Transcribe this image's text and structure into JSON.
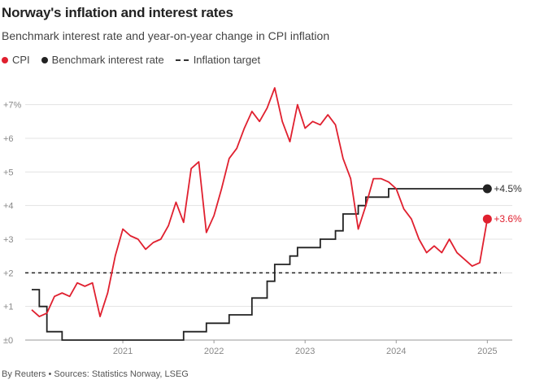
{
  "title": "Norway's inflation and interest rates",
  "subtitle": "Benchmark interest rate and year-on-year change in CPI inflation",
  "footer": "By Reuters • Sources: Statistics Norway, LSEG",
  "legend": {
    "cpi": "CPI",
    "rate": "Benchmark interest rate",
    "target": "Inflation target"
  },
  "colors": {
    "cpi": "#e0202f",
    "rate": "#222222",
    "target": "#222222",
    "grid": "#e3e3e3"
  },
  "chart_data": {
    "type": "line",
    "ylim": [
      0,
      7.5
    ],
    "xlim": [
      "2020-01",
      "2025-03"
    ],
    "y_ticks": [
      {
        "value": 0,
        "label": "±0"
      },
      {
        "value": 1,
        "label": "+1"
      },
      {
        "value": 2,
        "label": "+2"
      },
      {
        "value": 3,
        "label": "+3"
      },
      {
        "value": 4,
        "label": "+4"
      },
      {
        "value": 5,
        "label": "+5"
      },
      {
        "value": 6,
        "label": "+6"
      },
      {
        "value": 7,
        "label": "+7%"
      }
    ],
    "x_ticks": [
      {
        "value": "2021-01",
        "label": "2021"
      },
      {
        "value": "2022-01",
        "label": "2022"
      },
      {
        "value": "2023-01",
        "label": "2023"
      },
      {
        "value": "2024-01",
        "label": "2024"
      },
      {
        "value": "2025-01",
        "label": "2025"
      }
    ],
    "inflation_target": 2,
    "series": [
      {
        "name": "CPI",
        "points": [
          [
            "2020-01",
            0.9
          ],
          [
            "2020-02",
            0.7
          ],
          [
            "2020-03",
            0.8
          ],
          [
            "2020-04",
            1.3
          ],
          [
            "2020-05",
            1.4
          ],
          [
            "2020-06",
            1.3
          ],
          [
            "2020-07",
            1.7
          ],
          [
            "2020-08",
            1.6
          ],
          [
            "2020-09",
            1.7
          ],
          [
            "2020-10",
            0.7
          ],
          [
            "2020-11",
            1.4
          ],
          [
            "2020-12",
            2.5
          ],
          [
            "2021-01",
            3.3
          ],
          [
            "2021-02",
            3.1
          ],
          [
            "2021-03",
            3.0
          ],
          [
            "2021-04",
            2.7
          ],
          [
            "2021-05",
            2.9
          ],
          [
            "2021-06",
            3.0
          ],
          [
            "2021-07",
            3.4
          ],
          [
            "2021-08",
            4.1
          ],
          [
            "2021-09",
            3.5
          ],
          [
            "2021-10",
            5.1
          ],
          [
            "2021-11",
            5.3
          ],
          [
            "2021-12",
            3.2
          ],
          [
            "2022-01",
            3.7
          ],
          [
            "2022-02",
            4.5
          ],
          [
            "2022-03",
            5.4
          ],
          [
            "2022-04",
            5.7
          ],
          [
            "2022-05",
            6.3
          ],
          [
            "2022-06",
            6.8
          ],
          [
            "2022-07",
            6.5
          ],
          [
            "2022-08",
            6.9
          ],
          [
            "2022-09",
            7.5
          ],
          [
            "2022-10",
            6.5
          ],
          [
            "2022-11",
            5.9
          ],
          [
            "2022-12",
            7.0
          ],
          [
            "2023-01",
            6.3
          ],
          [
            "2023-02",
            6.5
          ],
          [
            "2023-03",
            6.4
          ],
          [
            "2023-04",
            6.7
          ],
          [
            "2023-05",
            6.4
          ],
          [
            "2023-06",
            5.4
          ],
          [
            "2023-07",
            4.8
          ],
          [
            "2023-08",
            3.3
          ],
          [
            "2023-09",
            4.0
          ],
          [
            "2023-10",
            4.8
          ],
          [
            "2023-11",
            4.8
          ],
          [
            "2023-12",
            4.7
          ],
          [
            "2024-01",
            4.5
          ],
          [
            "2024-02",
            3.9
          ],
          [
            "2024-03",
            3.6
          ],
          [
            "2024-04",
            3.0
          ],
          [
            "2024-05",
            2.6
          ],
          [
            "2024-06",
            2.8
          ],
          [
            "2024-07",
            2.6
          ],
          [
            "2024-08",
            3.0
          ],
          [
            "2024-09",
            2.6
          ],
          [
            "2024-10",
            2.4
          ],
          [
            "2024-11",
            2.2
          ],
          [
            "2024-12",
            2.3
          ],
          [
            "2025-01",
            3.6
          ]
        ],
        "end_label": "+3.6%"
      },
      {
        "name": "Benchmark interest rate",
        "step": true,
        "points": [
          [
            "2020-01",
            1.5
          ],
          [
            "2020-02",
            1.0
          ],
          [
            "2020-03",
            0.25
          ],
          [
            "2020-05",
            0.0
          ],
          [
            "2021-09",
            0.25
          ],
          [
            "2021-12",
            0.5
          ],
          [
            "2022-03",
            0.75
          ],
          [
            "2022-06",
            1.25
          ],
          [
            "2022-08",
            1.75
          ],
          [
            "2022-09",
            2.25
          ],
          [
            "2022-11",
            2.5
          ],
          [
            "2022-12",
            2.75
          ],
          [
            "2023-03",
            3.0
          ],
          [
            "2023-05",
            3.25
          ],
          [
            "2023-06",
            3.75
          ],
          [
            "2023-08",
            4.0
          ],
          [
            "2023-09",
            4.25
          ],
          [
            "2023-12",
            4.5
          ],
          [
            "2025-01",
            4.5
          ]
        ],
        "end_label": "+4.5%"
      }
    ]
  }
}
